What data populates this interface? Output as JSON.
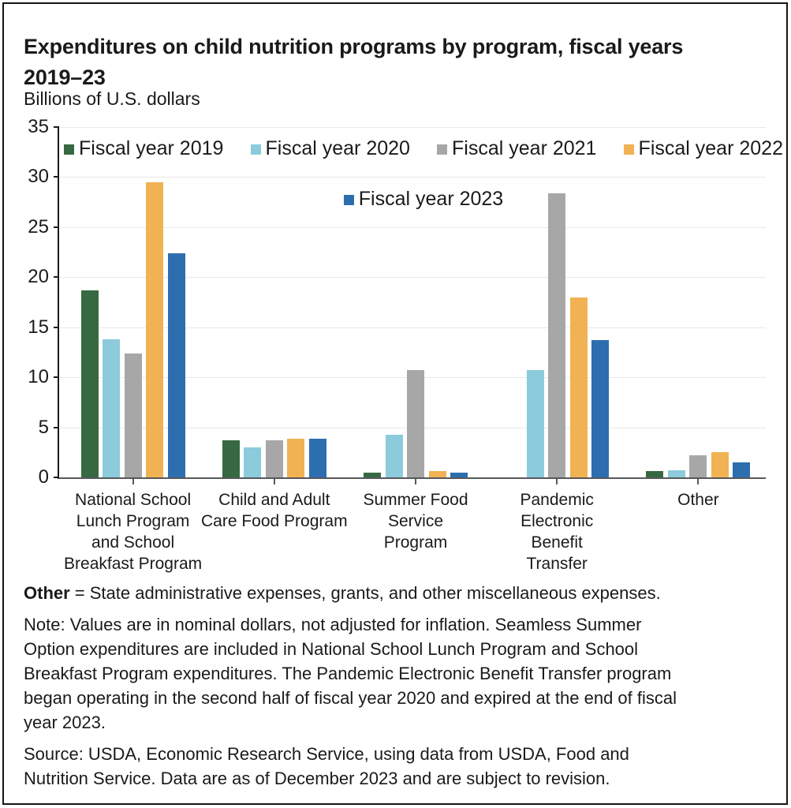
{
  "title": "Expenditures on child nutrition programs by program, fiscal years\n2019–23",
  "subtitle": "Billions of U.S. dollars",
  "chart_data": {
    "type": "bar",
    "title": "Expenditures on child nutrition programs by program, fiscal years 2019–23",
    "ylabel": "Billions of U.S. dollars",
    "xlabel": "",
    "ylim": [
      0,
      35
    ],
    "ytick_interval": 5,
    "grid": "horizontal",
    "legend_position": "top",
    "categories": [
      "National School\nLunch Program\nand School\nBreakfast Program",
      "Child and Adult\nCare Food Program",
      "Summer Food\nService\nProgram",
      "Pandemic\nElectronic\nBenefit\nTransfer",
      "Other"
    ],
    "series": [
      {
        "name": "Fiscal year 2019",
        "color": "#366942",
        "values": [
          18.7,
          3.7,
          0.5,
          null,
          0.6
        ]
      },
      {
        "name": "Fiscal year 2020",
        "color": "#8BCBDB",
        "values": [
          13.8,
          3.0,
          4.3,
          10.7,
          0.7
        ]
      },
      {
        "name": "Fiscal year 2021",
        "color": "#A7A7A7",
        "values": [
          12.4,
          3.7,
          10.7,
          28.4,
          2.2
        ]
      },
      {
        "name": "Fiscal year 2022",
        "color": "#F1B253",
        "values": [
          29.5,
          3.9,
          0.6,
          18.0,
          2.5
        ]
      },
      {
        "name": "Fiscal year 2023",
        "color": "#2D6EAF",
        "values": [
          22.4,
          3.9,
          0.5,
          13.7,
          1.5
        ]
      }
    ]
  },
  "footer": {
    "other_term": "Other",
    "other_rest": " = State administrative expenses, grants, and other miscellaneous expenses.",
    "note": "Note: Values are in nominal dollars, not adjusted for inflation. Seamless Summer\nOption expenditures are included in National School Lunch Program and School\nBreakfast Program expenditures. The Pandemic Electronic Benefit Transfer program\nbegan operating in the second half of fiscal year 2020 and expired at the end of fiscal\nyear 2023.",
    "source": "Source: USDA, Economic Research Service, using data from USDA, Food and\nNutrition Service. Data are as of December 2023 and are subject to revision."
  }
}
